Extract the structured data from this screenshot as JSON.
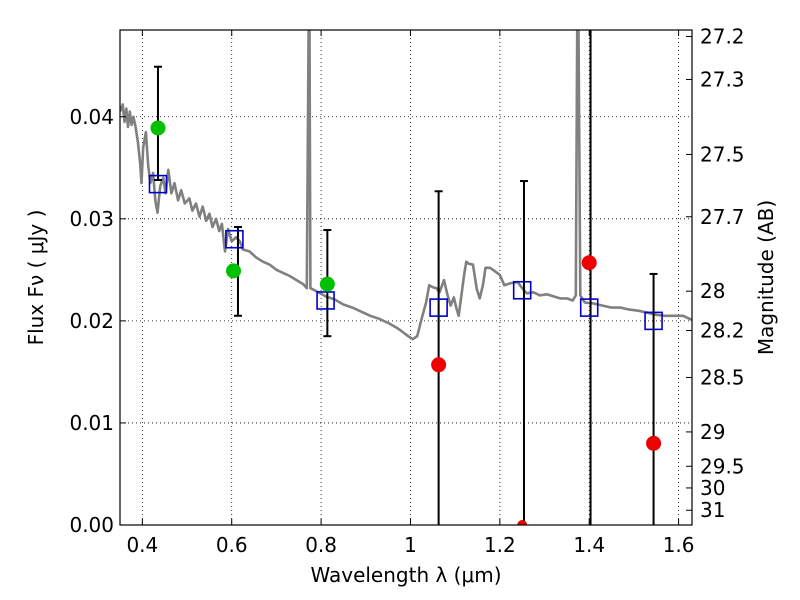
{
  "chart_data": {
    "type": "scatter",
    "xlabel": "Wavelength  λ (μm)",
    "ylabel": "Flux  Fν  ( μJy )",
    "ylabel_right": "Magnitude (AB)",
    "xlim": [
      0.35,
      1.63
    ],
    "ylim": [
      0.0,
      0.0485
    ],
    "grid": true,
    "x_ticks": [
      {
        "value": 0.4,
        "label": "0.4"
      },
      {
        "value": 0.6,
        "label": "0.6"
      },
      {
        "value": 0.8,
        "label": "0.8"
      },
      {
        "value": 1.0,
        "label": "1"
      },
      {
        "value": 1.2,
        "label": "1.2"
      },
      {
        "value": 1.4,
        "label": "1.4"
      },
      {
        "value": 1.6,
        "label": "1.6"
      }
    ],
    "y_ticks": [
      {
        "value": 0.0,
        "label": "0.00"
      },
      {
        "value": 0.01,
        "label": "0.01"
      },
      {
        "value": 0.02,
        "label": "0.02"
      },
      {
        "value": 0.03,
        "label": "0.03"
      },
      {
        "value": 0.04,
        "label": "0.04"
      }
    ],
    "mag_ticks": [
      {
        "value": 27.2,
        "label": "27.2"
      },
      {
        "value": 27.3,
        "label": "27.3"
      },
      {
        "value": 27.5,
        "label": "27.5"
      },
      {
        "value": 27.7,
        "label": "27.7"
      },
      {
        "value": 28,
        "label": "28"
      },
      {
        "value": 28.2,
        "label": "28.2"
      },
      {
        "value": 28.5,
        "label": "28.5"
      },
      {
        "value": 29,
        "label": "29"
      },
      {
        "value": 29.5,
        "label": "29.5"
      },
      {
        "value": 30,
        "label": "30"
      },
      {
        "value": 31,
        "label": "31"
      }
    ],
    "series": [
      {
        "kind": "line",
        "color": "#808080",
        "points": [
          [
            0.35,
            0.0405
          ],
          [
            0.356,
            0.0412
          ],
          [
            0.36,
            0.0395
          ],
          [
            0.364,
            0.0408
          ],
          [
            0.368,
            0.039
          ],
          [
            0.372,
            0.0405
          ],
          [
            0.376,
            0.0392
          ],
          [
            0.38,
            0.04
          ],
          [
            0.385,
            0.039
          ],
          [
            0.39,
            0.0375
          ],
          [
            0.395,
            0.0355
          ],
          [
            0.398,
            0.0335
          ],
          [
            0.402,
            0.037
          ],
          [
            0.408,
            0.0385
          ],
          [
            0.413,
            0.0352
          ],
          [
            0.418,
            0.0335
          ],
          [
            0.424,
            0.0345
          ],
          [
            0.429,
            0.0318
          ],
          [
            0.434,
            0.0306
          ],
          [
            0.44,
            0.0332
          ],
          [
            0.447,
            0.034
          ],
          [
            0.452,
            0.0325
          ],
          [
            0.458,
            0.0348
          ],
          [
            0.465,
            0.0325
          ],
          [
            0.472,
            0.0335
          ],
          [
            0.48,
            0.0318
          ],
          [
            0.487,
            0.0328
          ],
          [
            0.495,
            0.0315
          ],
          [
            0.505,
            0.032
          ],
          [
            0.512,
            0.0308
          ],
          [
            0.52,
            0.0315
          ],
          [
            0.528,
            0.0302
          ],
          [
            0.535,
            0.0312
          ],
          [
            0.543,
            0.0298
          ],
          [
            0.55,
            0.0305
          ],
          [
            0.557,
            0.0292
          ],
          [
            0.565,
            0.03
          ],
          [
            0.572,
            0.0288
          ],
          [
            0.578,
            0.0295
          ],
          [
            0.585,
            0.0268
          ],
          [
            0.592,
            0.029
          ],
          [
            0.6,
            0.0278
          ],
          [
            0.61,
            0.0282
          ],
          [
            0.618,
            0.0278
          ],
          [
            0.625,
            0.027
          ],
          [
            0.64,
            0.0268
          ],
          [
            0.655,
            0.0262
          ],
          [
            0.67,
            0.0258
          ],
          [
            0.685,
            0.0255
          ],
          [
            0.7,
            0.025
          ],
          [
            0.715,
            0.0247
          ],
          [
            0.73,
            0.0244
          ],
          [
            0.745,
            0.024
          ],
          [
            0.76,
            0.0236
          ],
          [
            0.768,
            0.0232
          ],
          [
            0.772,
            0.0485
          ],
          [
            0.774,
            0.0485
          ],
          [
            0.776,
            0.0232
          ],
          [
            0.79,
            0.0229
          ],
          [
            0.81,
            0.0224
          ],
          [
            0.83,
            0.0221
          ],
          [
            0.85,
            0.0216
          ],
          [
            0.87,
            0.0213
          ],
          [
            0.89,
            0.0209
          ],
          [
            0.91,
            0.0205
          ],
          [
            0.93,
            0.0202
          ],
          [
            0.95,
            0.0198
          ],
          [
            0.97,
            0.0193
          ],
          [
            0.98,
            0.019
          ],
          [
            0.995,
            0.0185
          ],
          [
            1.005,
            0.0182
          ],
          [
            1.015,
            0.0185
          ],
          [
            1.025,
            0.0202
          ],
          [
            1.035,
            0.0218
          ],
          [
            1.042,
            0.0235
          ],
          [
            1.05,
            0.0233
          ],
          [
            1.058,
            0.0232
          ],
          [
            1.065,
            0.0228
          ],
          [
            1.075,
            0.024
          ],
          [
            1.083,
            0.0225
          ],
          [
            1.09,
            0.0215
          ],
          [
            1.097,
            0.0223
          ],
          [
            1.103,
            0.0212
          ],
          [
            1.108,
            0.0205
          ],
          [
            1.113,
            0.0222
          ],
          [
            1.12,
            0.0245
          ],
          [
            1.125,
            0.0258
          ],
          [
            1.13,
            0.0256
          ],
          [
            1.14,
            0.0255
          ],
          [
            1.148,
            0.0232
          ],
          [
            1.155,
            0.0222
          ],
          [
            1.162,
            0.0235
          ],
          [
            1.168,
            0.0252
          ],
          [
            1.178,
            0.0252
          ],
          [
            1.188,
            0.0249
          ],
          [
            1.2,
            0.0245
          ],
          [
            1.21,
            0.0235
          ],
          [
            1.225,
            0.0237
          ],
          [
            1.24,
            0.0238
          ],
          [
            1.25,
            0.0232
          ],
          [
            1.26,
            0.0227
          ],
          [
            1.275,
            0.0228
          ],
          [
            1.29,
            0.0225
          ],
          [
            1.305,
            0.0226
          ],
          [
            1.32,
            0.0224
          ],
          [
            1.335,
            0.0222
          ],
          [
            1.35,
            0.0222
          ],
          [
            1.363,
            0.022
          ],
          [
            1.37,
            0.0225
          ],
          [
            1.373,
            0.0485
          ],
          [
            1.376,
            0.0485
          ],
          [
            1.38,
            0.0225
          ],
          [
            1.39,
            0.0218
          ],
          [
            1.41,
            0.0217
          ],
          [
            1.43,
            0.0215
          ],
          [
            1.45,
            0.0213
          ],
          [
            1.47,
            0.0213
          ],
          [
            1.49,
            0.0211
          ],
          [
            1.51,
            0.021
          ],
          [
            1.53,
            0.0208
          ],
          [
            1.55,
            0.0206
          ],
          [
            1.57,
            0.0205
          ],
          [
            1.59,
            0.0205
          ],
          [
            1.61,
            0.0205
          ],
          [
            1.63,
            0.0201
          ]
        ]
      },
      {
        "kind": "squares",
        "color": "#0000cc",
        "points": [
          [
            0.435,
            0.0334
          ],
          [
            0.606,
            0.028
          ],
          [
            0.81,
            0.022
          ],
          [
            1.063,
            0.0213
          ],
          [
            1.25,
            0.023
          ],
          [
            1.4,
            0.0213
          ],
          [
            1.544,
            0.02
          ]
        ]
      },
      {
        "kind": "errorbars",
        "color": "#000000",
        "points": [
          {
            "x": 0.435,
            "lo": 0.0338,
            "hi": 0.0449
          },
          {
            "x": 0.614,
            "lo": 0.0205,
            "hi": 0.0292
          },
          {
            "x": 0.814,
            "lo": 0.0185,
            "hi": 0.0289
          },
          {
            "x": 1.063,
            "lo": 0.0,
            "hi": 0.0327
          },
          {
            "x": 1.254,
            "lo": 0.0,
            "hi": 0.0337
          },
          {
            "x": 1.403,
            "lo": 0.0,
            "hi": 0.0485
          },
          {
            "x": 1.544,
            "lo": 0.0,
            "hi": 0.0246
          }
        ]
      },
      {
        "kind": "dots",
        "color": "#00c000",
        "points": [
          [
            0.435,
            0.0389
          ],
          [
            0.604,
            0.0249
          ],
          [
            0.814,
            0.0236
          ]
        ]
      },
      {
        "kind": "dots",
        "color": "#ee0000",
        "points": [
          [
            1.063,
            0.0157
          ],
          [
            1.25,
            0.0
          ],
          [
            1.4,
            0.0257
          ],
          [
            1.544,
            0.008
          ]
        ]
      }
    ]
  }
}
